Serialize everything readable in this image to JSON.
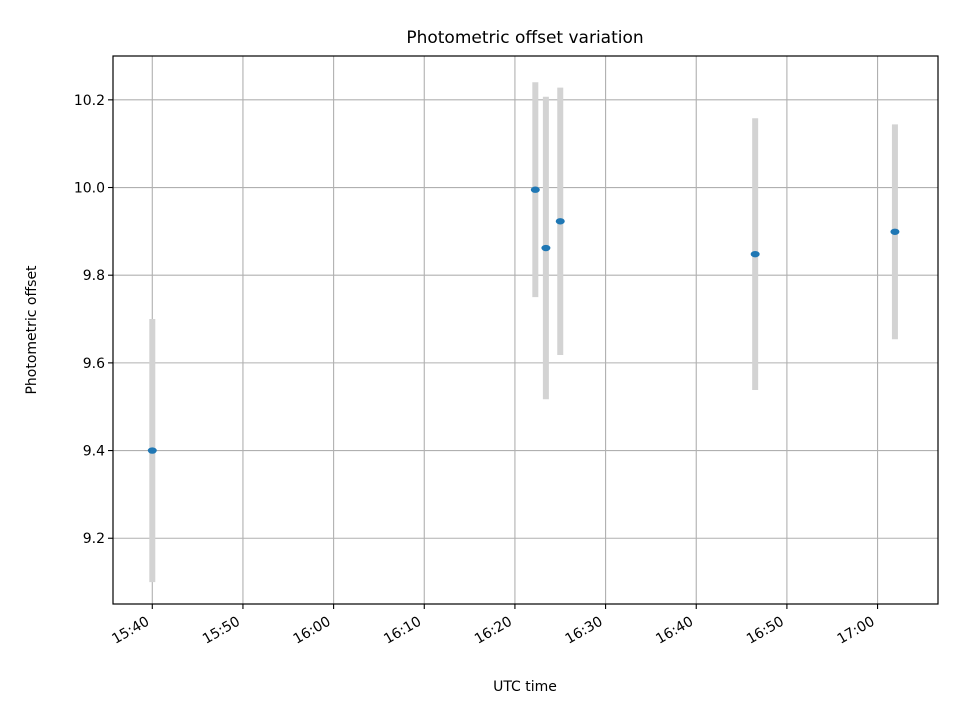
{
  "chart_data": {
    "type": "scatter",
    "title": "Photometric offset variation",
    "xlabel": "UTC time",
    "ylabel": "Photometric offset",
    "x_is_time": true,
    "xlim": [
      "15:35:40",
      "17:06:40"
    ],
    "ylim": [
      9.05,
      10.3
    ],
    "xticks": [
      "15:40",
      "15:50",
      "16:00",
      "16:10",
      "16:20",
      "16:30",
      "16:40",
      "16:50",
      "17:00"
    ],
    "yticks": [
      "9.2",
      "9.4",
      "9.6",
      "9.8",
      "10.0",
      "10.2"
    ],
    "grid": true,
    "points": [
      {
        "x": "15:40:00",
        "y": 9.4,
        "err": 0.3
      },
      {
        "x": "16:22:15",
        "y": 9.995,
        "err": 0.245
      },
      {
        "x": "16:23:25",
        "y": 9.862,
        "err": 0.345
      },
      {
        "x": "16:25:00",
        "y": 9.923,
        "err": 0.305
      },
      {
        "x": "16:46:30",
        "y": 9.848,
        "err": 0.31
      },
      {
        "x": "17:01:55",
        "y": 9.899,
        "err": 0.245
      }
    ],
    "colors": {
      "marker": "#1f77b4",
      "errorbar": "#d3d3d3",
      "grid": "#b0b0b0",
      "axes": "#000000"
    }
  }
}
